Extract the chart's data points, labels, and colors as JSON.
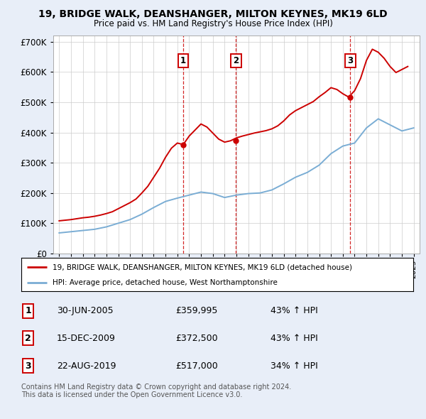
{
  "title": "19, BRIDGE WALK, DEANSHANGER, MILTON KEYNES, MK19 6LD",
  "subtitle": "Price paid vs. HM Land Registry's House Price Index (HPI)",
  "background_color": "#e8eef8",
  "plot_background": "#ffffff",
  "ylim": [
    0,
    720000
  ],
  "yticks": [
    0,
    100000,
    200000,
    300000,
    400000,
    500000,
    600000,
    700000
  ],
  "ytick_labels": [
    "£0",
    "£100K",
    "£200K",
    "£300K",
    "£400K",
    "£500K",
    "£600K",
    "£700K"
  ],
  "sale_dates": [
    2005.5,
    2009.96,
    2019.64
  ],
  "sale_prices": [
    359995,
    372500,
    517000
  ],
  "sale_labels": [
    "1",
    "2",
    "3"
  ],
  "legend_entries": [
    "19, BRIDGE WALK, DEANSHANGER, MILTON KEYNES, MK19 6LD (detached house)",
    "HPI: Average price, detached house, West Northamptonshire"
  ],
  "table_rows": [
    [
      "1",
      "30-JUN-2005",
      "£359,995",
      "43% ↑ HPI"
    ],
    [
      "2",
      "15-DEC-2009",
      "£372,500",
      "43% ↑ HPI"
    ],
    [
      "3",
      "22-AUG-2019",
      "£517,000",
      "34% ↑ HPI"
    ]
  ],
  "footer": "Contains HM Land Registry data © Crown copyright and database right 2024.\nThis data is licensed under the Open Government Licence v3.0.",
  "red_color": "#cc0000",
  "blue_color": "#7aadd4",
  "hpi_years": [
    1995,
    1996,
    1997,
    1998,
    1999,
    2000,
    2001,
    2002,
    2003,
    2004,
    2005,
    2006,
    2007,
    2008,
    2009,
    2010,
    2011,
    2012,
    2013,
    2014,
    2015,
    2016,
    2017,
    2018,
    2019,
    2020,
    2021,
    2022,
    2023,
    2024,
    2025
  ],
  "hpi_values": [
    68000,
    72000,
    76000,
    80000,
    88000,
    100000,
    112000,
    130000,
    152000,
    172000,
    183000,
    193000,
    203000,
    198000,
    185000,
    193000,
    198000,
    200000,
    210000,
    230000,
    252000,
    268000,
    292000,
    330000,
    355000,
    365000,
    415000,
    445000,
    425000,
    405000,
    415000
  ],
  "price_years": [
    1995.0,
    1995.5,
    1996.0,
    1996.5,
    1997.0,
    1997.5,
    1998.0,
    1998.5,
    1999.0,
    1999.5,
    2000.0,
    2000.5,
    2001.0,
    2001.5,
    2002.0,
    2002.5,
    2003.0,
    2003.5,
    2004.0,
    2004.5,
    2005.0,
    2005.5,
    2006.0,
    2006.5,
    2007.0,
    2007.5,
    2008.0,
    2008.5,
    2009.0,
    2009.5,
    2010.0,
    2010.5,
    2011.0,
    2011.5,
    2012.0,
    2012.5,
    2013.0,
    2013.5,
    2014.0,
    2014.5,
    2015.0,
    2015.5,
    2016.0,
    2016.5,
    2017.0,
    2017.5,
    2018.0,
    2018.5,
    2019.0,
    2019.5,
    2020.0,
    2020.5,
    2021.0,
    2021.5,
    2022.0,
    2022.5,
    2023.0,
    2023.5,
    2024.0,
    2024.5
  ],
  "price_values": [
    108000,
    110000,
    112000,
    115000,
    118000,
    120000,
    123000,
    127000,
    132000,
    138000,
    148000,
    158000,
    168000,
    180000,
    200000,
    222000,
    252000,
    282000,
    318000,
    348000,
    365000,
    359995,
    388000,
    408000,
    428000,
    418000,
    398000,
    378000,
    368000,
    372500,
    382000,
    388000,
    393000,
    398000,
    402000,
    406000,
    412000,
    422000,
    438000,
    458000,
    472000,
    482000,
    492000,
    502000,
    518000,
    532000,
    548000,
    542000,
    528000,
    517000,
    538000,
    578000,
    638000,
    675000,
    665000,
    645000,
    618000,
    598000,
    608000,
    618000
  ]
}
